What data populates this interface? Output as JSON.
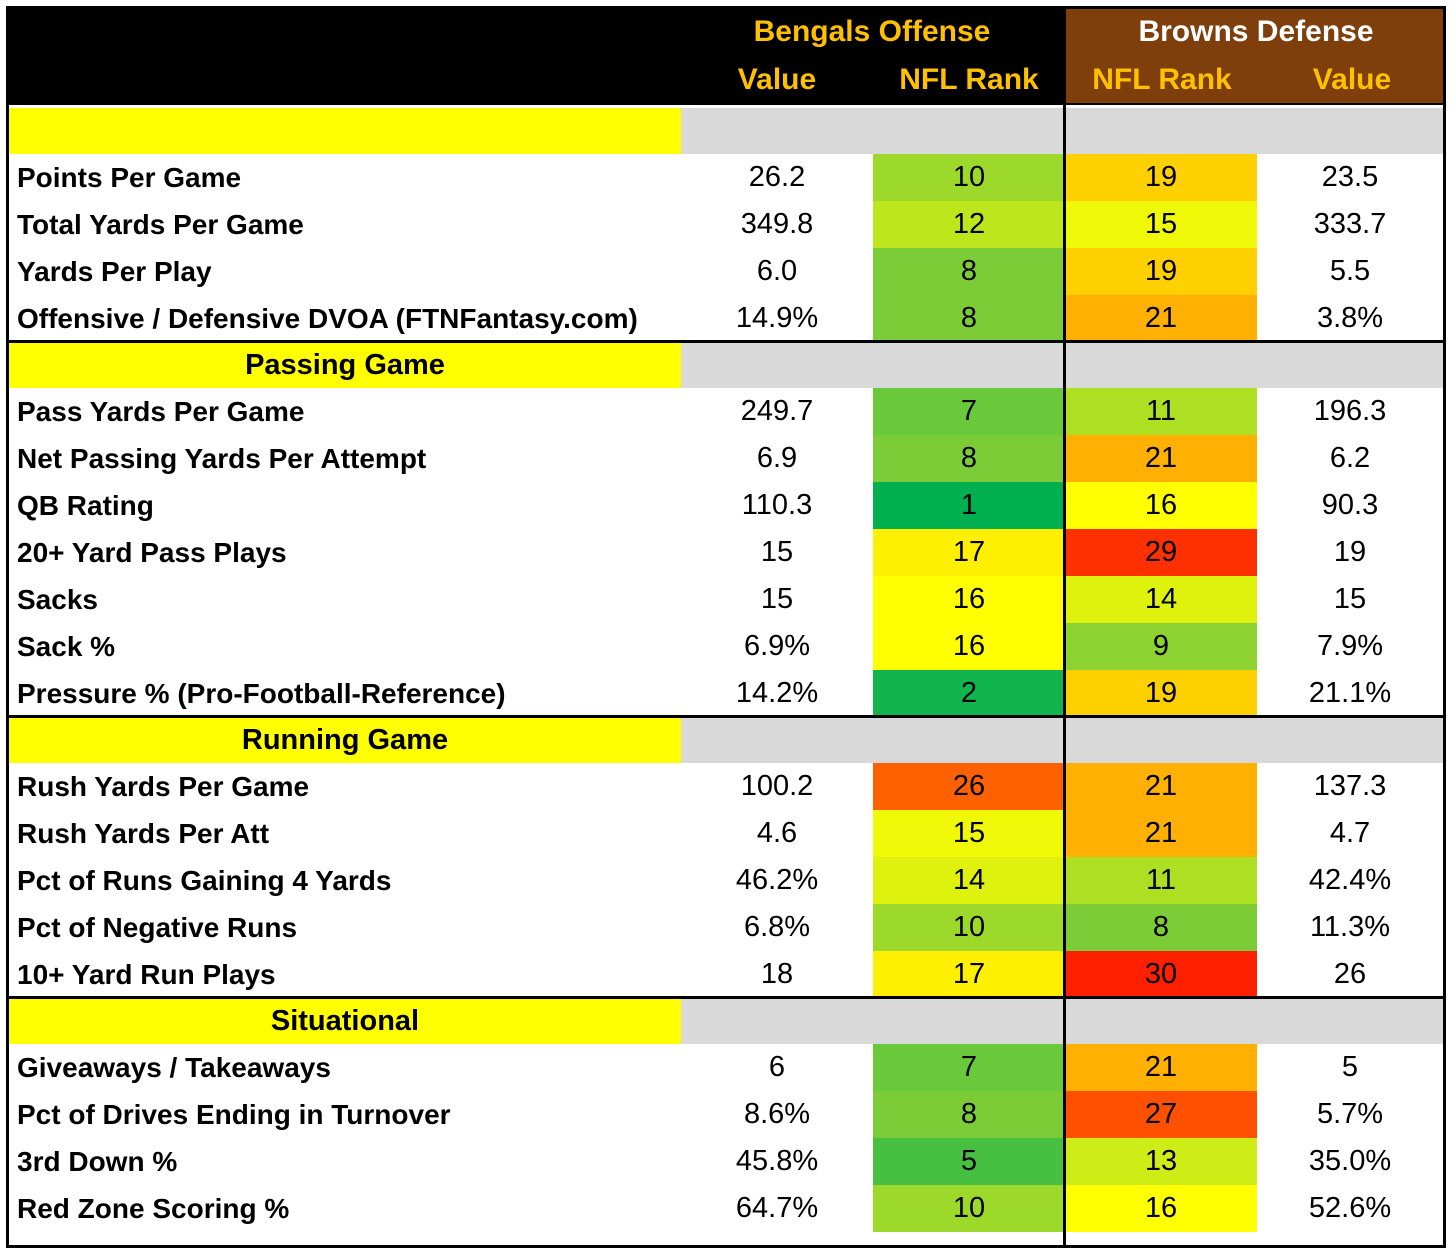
{
  "colors": {
    "header_bg": "#000000",
    "bengals_text": "#ffc000",
    "browns_bg": "#7f3f0c",
    "browns_title": "#ffffff",
    "browns_sub": "#ffc000",
    "section_yellow": "#ffff00",
    "section_gray": "#d9d9d9"
  },
  "header": {
    "bengals_title": "Bengals Offense",
    "browns_title": "Browns Defense",
    "bengals_value": "Value",
    "bengals_rank": "NFL Rank",
    "browns_rank": "NFL Rank",
    "browns_value": "Value"
  },
  "chart_data": {
    "type": "table",
    "title": "Bengals Offense vs Browns Defense",
    "columns": [
      "Bengals Offense Value",
      "Bengals NFL Rank",
      "Browns NFL Rank",
      "Browns Defense Value"
    ],
    "rank_color_scale": "green (rank 1) to yellow (rank 16) to red (rank 32)",
    "sections": [
      {
        "name": "",
        "rows": [
          {
            "label": "Points Per Game",
            "off_value": "26.2",
            "off_rank": 10,
            "def_rank": 19,
            "def_value": "23.5"
          },
          {
            "label": "Total Yards Per Game",
            "off_value": "349.8",
            "off_rank": 12,
            "def_rank": 15,
            "def_value": "333.7"
          },
          {
            "label": "Yards Per Play",
            "off_value": "6.0",
            "off_rank": 8,
            "def_rank": 19,
            "def_value": "5.5"
          },
          {
            "label": "Offensive / Defensive DVOA (FTNFantasy.com)",
            "off_value": "14.9%",
            "off_rank": 8,
            "def_rank": 21,
            "def_value": "3.8%"
          }
        ]
      },
      {
        "name": "Passing Game",
        "rows": [
          {
            "label": "Pass Yards Per Game",
            "off_value": "249.7",
            "off_rank": 7,
            "def_rank": 11,
            "def_value": "196.3"
          },
          {
            "label": "Net Passing Yards Per Attempt",
            "off_value": "6.9",
            "off_rank": 8,
            "def_rank": 21,
            "def_value": "6.2"
          },
          {
            "label": "QB Rating",
            "off_value": "110.3",
            "off_rank": 1,
            "def_rank": 16,
            "def_value": "90.3"
          },
          {
            "label": "20+ Yard Pass Plays",
            "off_value": "15",
            "off_rank": 17,
            "def_rank": 29,
            "def_value": "19"
          },
          {
            "label": "Sacks",
            "off_value": "15",
            "off_rank": 16,
            "def_rank": 14,
            "def_value": "15"
          },
          {
            "label": "Sack %",
            "off_value": "6.9%",
            "off_rank": 16,
            "def_rank": 9,
            "def_value": "7.9%"
          },
          {
            "label": "Pressure % (Pro-Football-Reference)",
            "off_value": "14.2%",
            "off_rank": 2,
            "def_rank": 19,
            "def_value": "21.1%"
          }
        ]
      },
      {
        "name": "Running Game",
        "rows": [
          {
            "label": "Rush Yards Per Game",
            "off_value": "100.2",
            "off_rank": 26,
            "def_rank": 21,
            "def_value": "137.3"
          },
          {
            "label": "Rush Yards Per Att",
            "off_value": "4.6",
            "off_rank": 15,
            "def_rank": 21,
            "def_value": "4.7"
          },
          {
            "label": "Pct of Runs Gaining 4 Yards",
            "off_value": "46.2%",
            "off_rank": 14,
            "def_rank": 11,
            "def_value": "42.4%"
          },
          {
            "label": "Pct of Negative Runs",
            "off_value": "6.8%",
            "off_rank": 10,
            "def_rank": 8,
            "def_value": "11.3%"
          },
          {
            "label": "10+ Yard Run Plays",
            "off_value": "18",
            "off_rank": 17,
            "def_rank": 30,
            "def_value": "26"
          }
        ]
      },
      {
        "name": "Situational",
        "rows": [
          {
            "label": "Giveaways / Takeaways",
            "off_value": "6",
            "off_rank": 7,
            "def_rank": 21,
            "def_value": "5"
          },
          {
            "label": "Pct of Drives Ending in Turnover",
            "off_value": "8.6%",
            "off_rank": 8,
            "def_rank": 27,
            "def_value": "5.7%"
          },
          {
            "label": "3rd Down %",
            "off_value": "45.8%",
            "off_rank": 5,
            "def_rank": 13,
            "def_value": "35.0%"
          },
          {
            "label": "Red Zone Scoring %",
            "off_value": "64.7%",
            "off_rank": 10,
            "def_rank": 16,
            "def_value": "52.6%"
          }
        ]
      }
    ]
  }
}
